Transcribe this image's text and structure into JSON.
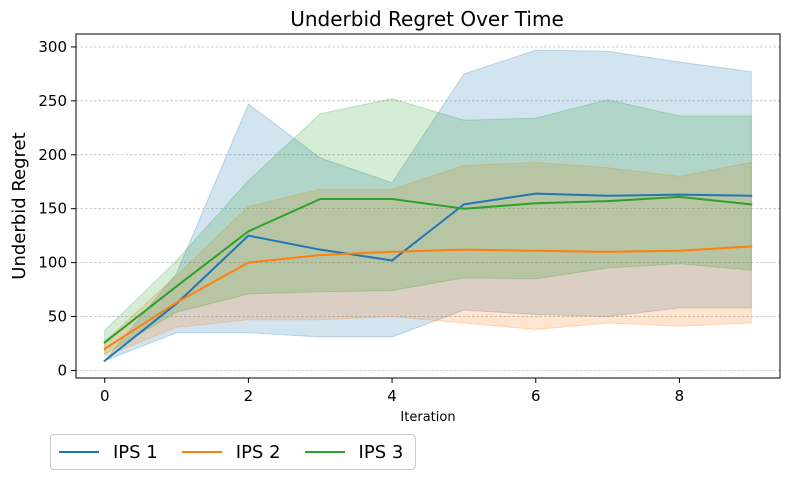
{
  "chart_data": {
    "type": "line",
    "title": "Underbid Regret Over Time",
    "xlabel": "Iteration",
    "ylabel": "Underbid Regret",
    "x": [
      0,
      1,
      2,
      3,
      4,
      5,
      6,
      7,
      8,
      9
    ],
    "xlim": [
      -0.4,
      9.4
    ],
    "ylim": [
      -7,
      312
    ],
    "xticks": [
      0,
      2,
      4,
      6,
      8
    ],
    "yticks": [
      0,
      50,
      100,
      150,
      200,
      250,
      300
    ],
    "grid": "horizontal dashed",
    "legend_position": "bottom-left outside",
    "series": [
      {
        "name": "IPS 1",
        "color": "#1f77b4",
        "values": [
          9,
          62,
          125,
          112,
          102,
          154,
          164,
          162,
          163,
          162
        ],
        "lower": [
          9,
          35,
          35,
          31,
          31,
          56,
          52,
          50,
          58,
          58
        ],
        "upper": [
          9,
          90,
          247,
          197,
          174,
          275,
          297,
          296,
          286,
          277
        ]
      },
      {
        "name": "IPS 2",
        "color": "#ff7f0e",
        "values": [
          20,
          63,
          100,
          107,
          110,
          112,
          111,
          110,
          111,
          115
        ],
        "lower": [
          13,
          40,
          47,
          47,
          50,
          44,
          38,
          44,
          41,
          44
        ],
        "upper": [
          27,
          88,
          152,
          168,
          168,
          190,
          193,
          188,
          180,
          193
        ]
      },
      {
        "name": "IPS 3",
        "color": "#2ca02c",
        "values": [
          26,
          78,
          129,
          159,
          159,
          150,
          155,
          157,
          161,
          154
        ],
        "lower": [
          15,
          54,
          71,
          73,
          74,
          86,
          85,
          95,
          99,
          93
        ],
        "upper": [
          37,
          102,
          176,
          238,
          252,
          232,
          234,
          251,
          236,
          236
        ]
      }
    ]
  }
}
